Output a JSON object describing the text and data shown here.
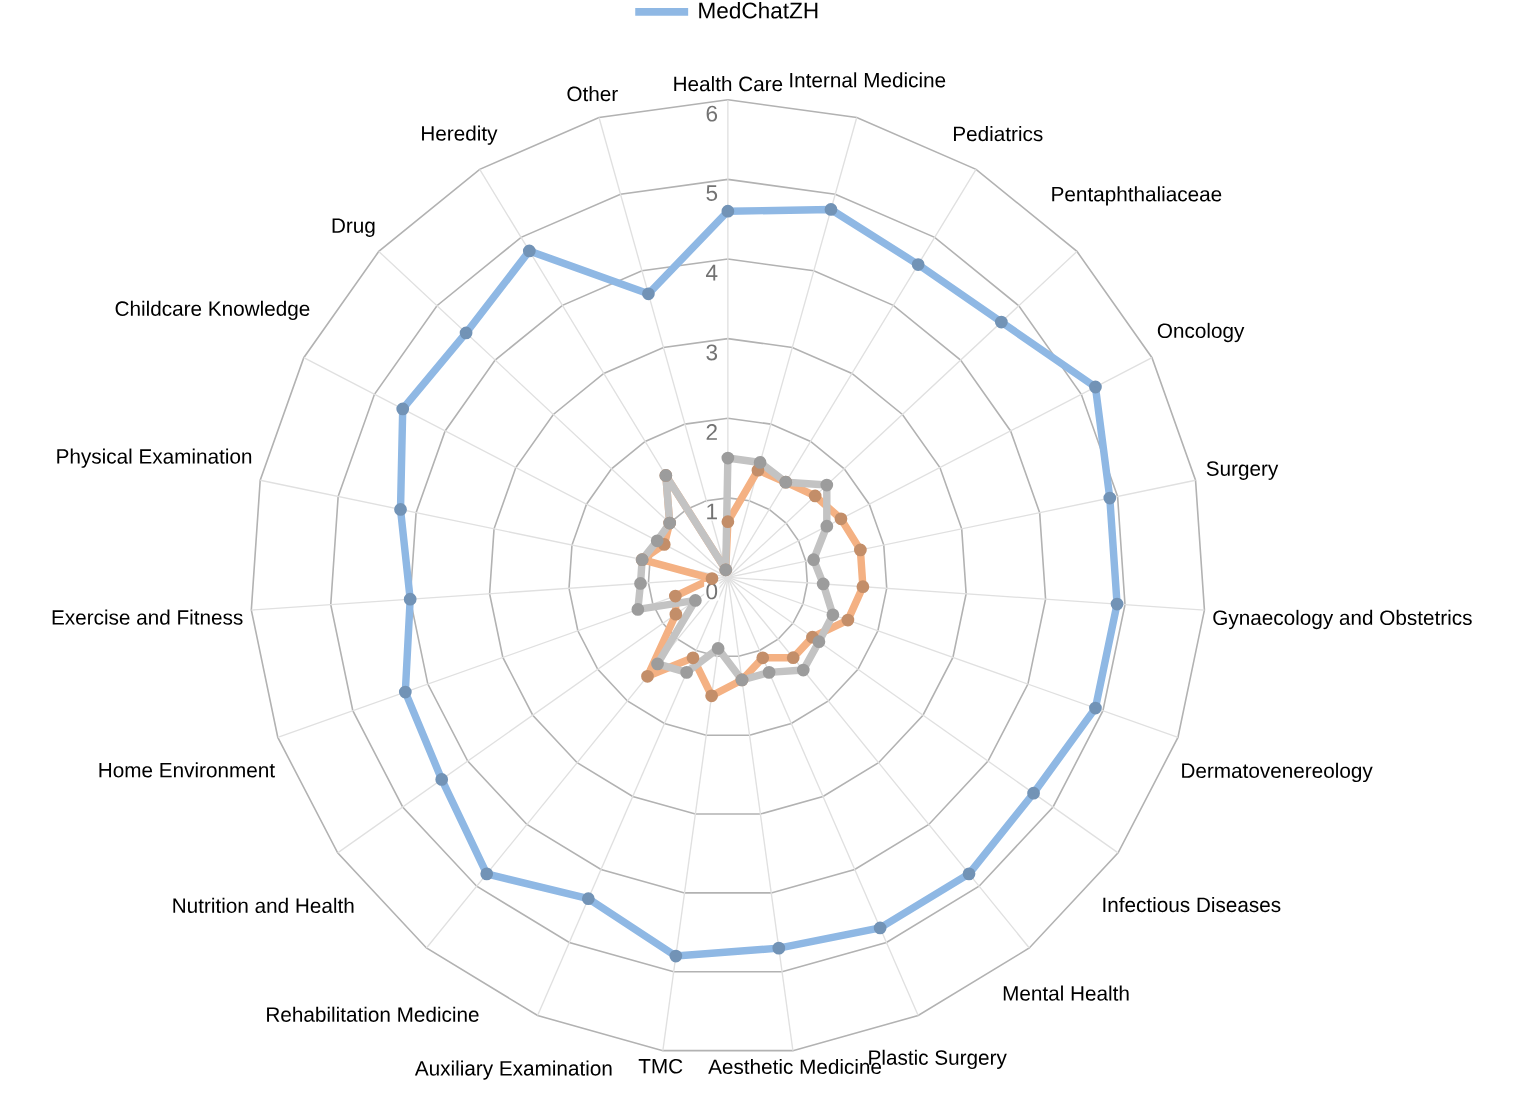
{
  "chart_data": {
    "type": "radar",
    "categories": [
      "Health Care",
      "Internal Medicine",
      "Pediatrics",
      "Pentaphthaliaceae",
      "Oncology",
      "Surgery",
      "Gynaecology and Obstetrics",
      "Dermatovenereology",
      "Infectious Diseases",
      "Mental Health",
      "Plastic Surgery",
      "Aesthetic Medicine",
      "TMC",
      "Auxiliary Examination",
      "Rehabilitation Medicine",
      "Nutrition and Health",
      "Home Environment",
      "Exercise and Fitness",
      "Physical Examination",
      "Childcare Knowledge",
      "Drug",
      "Heredity",
      "Other"
    ],
    "series": [
      {
        "name": "MedChatZH",
        "color": "#8fb8e4",
        "values": [
          4.6,
          4.8,
          4.6,
          4.7,
          5.2,
          4.9,
          4.9,
          4.9,
          4.7,
          4.8,
          4.8,
          4.7,
          4.8,
          4.4,
          4.8,
          4.4,
          4.3,
          4.0,
          4.2,
          4.6,
          4.5,
          4.8,
          3.7
        ]
      },
      {
        "color": "#f4b183",
        "values": [
          0.7,
          1.4,
          1.4,
          1.5,
          1.6,
          1.7,
          1.7,
          1.6,
          1.3,
          1.3,
          1.1,
          1.3,
          1.5,
          1.1,
          1.6,
          0.8,
          0.7,
          0.2,
          1.1,
          0.9,
          1.0,
          1.5,
          0.1
        ]
      },
      {
        "color": "#c3c3c3",
        "values": [
          1.5,
          1.5,
          1.4,
          1.7,
          1.4,
          1.1,
          1.2,
          1.4,
          1.4,
          1.5,
          1.3,
          1.3,
          0.9,
          1.3,
          1.4,
          0.5,
          1.2,
          1.1,
          1.1,
          1.0,
          1.0,
          1.5,
          0.1
        ]
      }
    ],
    "ylim": [
      0,
      6
    ],
    "yticks": [
      0,
      1,
      2,
      3,
      4,
      5,
      6
    ],
    "grid": true,
    "legend": "top",
    "marker": "circle",
    "line_style": "solid"
  }
}
